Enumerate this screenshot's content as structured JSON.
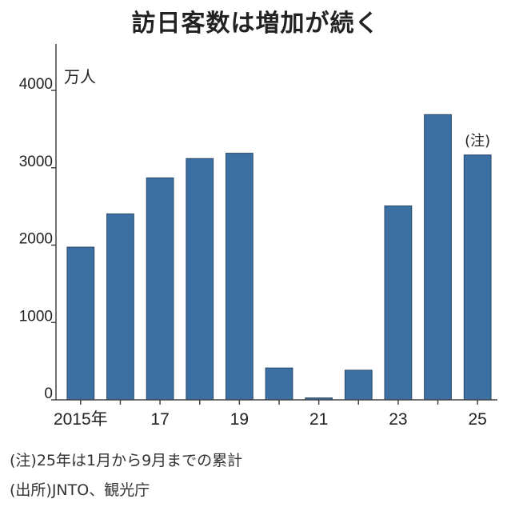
{
  "title": "訪日客数は増加が続く",
  "unit_label": "万人",
  "bar_note": "(注)",
  "notes": {
    "note": "(注)25年は1月から9月までの累計",
    "source": "(出所)JNTO、観光庁"
  },
  "colors": {
    "bar": "#3c6fa2",
    "bar_edge": "#27496b",
    "axis": "#444444",
    "text": "#222222"
  },
  "chart_data": {
    "type": "bar",
    "title": "訪日客数は増加が続く",
    "ylabel": "万人",
    "xlabel": "",
    "ylim": [
      0,
      4600
    ],
    "yticks": [
      0,
      1000,
      2000,
      3000,
      4000
    ],
    "categories": [
      "2015",
      "2016",
      "2017",
      "2018",
      "2019",
      "2020",
      "2021",
      "2022",
      "2023",
      "2024",
      "2025"
    ],
    "x_tick_labels": [
      "2015年",
      "",
      "17",
      "",
      "19",
      "",
      "21",
      "",
      "23",
      "",
      "25"
    ],
    "values": [
      1974,
      2404,
      2869,
      3119,
      3188,
      412,
      25,
      383,
      2507,
      3687,
      3165
    ],
    "annotations": [
      {
        "category": "2025",
        "text": "(注)"
      }
    ],
    "grid": false,
    "legend": "none"
  }
}
